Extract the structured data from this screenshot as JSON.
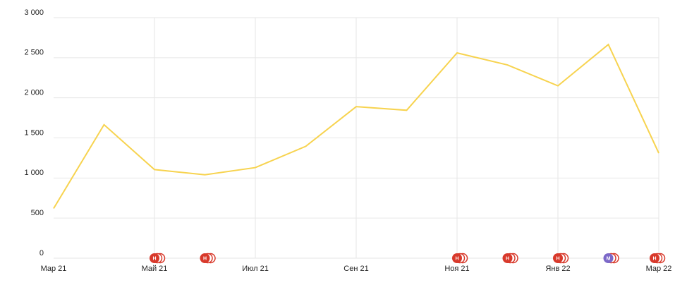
{
  "chart_data": {
    "type": "line",
    "categories": [
      "Мар 21",
      null,
      "Май 21",
      null,
      "Июл 21",
      null,
      "Сен 21",
      null,
      "Ноя 21",
      null,
      "Янв 22",
      null,
      "Мар 22"
    ],
    "series": [
      {
        "color": "#f7d34f",
        "values": [
          620,
          1665,
          1105,
          1040,
          1130,
          1395,
          1890,
          1845,
          2560,
          2410,
          2150,
          2665,
          1310
        ]
      }
    ],
    "ylim": [
      0,
      3000
    ],
    "yticks": [
      0,
      500,
      {
        "value": 1000,
        "label": "1 000"
      },
      {
        "value": 1500,
        "label": "1 500"
      },
      {
        "value": 2000,
        "label": "2 000"
      },
      {
        "value": 2500,
        "label": "2 500"
      },
      {
        "value": 3000,
        "label": "3 000"
      }
    ],
    "grid": true,
    "annotations": [
      {
        "x": 2,
        "label": "Н",
        "color": "#d8392b"
      },
      {
        "x": 3,
        "label": "Н",
        "color": "#d8392b"
      },
      {
        "x": 8,
        "label": "Н",
        "color": "#d8392b"
      },
      {
        "x": 9,
        "label": "Н",
        "color": "#d8392b"
      },
      {
        "x": 10,
        "label": "Н",
        "color": "#d8392b"
      },
      {
        "x": 11,
        "label": "М",
        "color": "#7b68c8"
      },
      {
        "x": 12,
        "label": "Н",
        "color": "#d8392b"
      }
    ]
  }
}
